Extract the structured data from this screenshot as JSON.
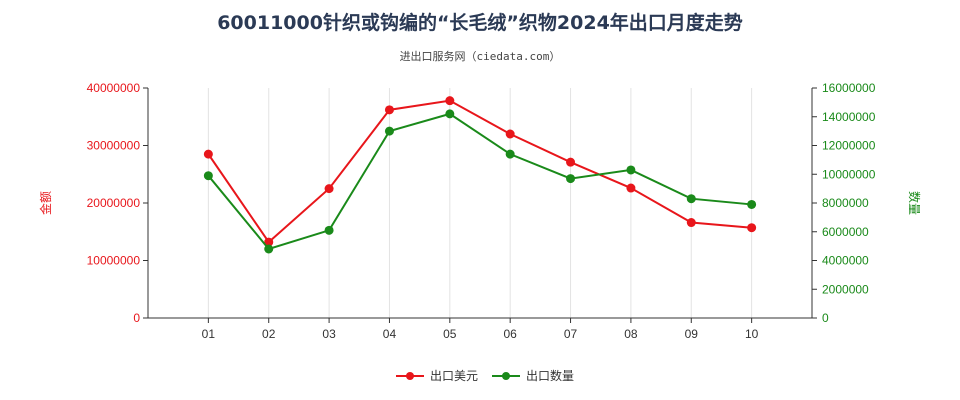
{
  "title": "60011000针织或钩编的“长毛绒”织物2024年出口月度走势",
  "subtitle": "进出口服务网（ciedata.com）",
  "colors": {
    "amount": "#e8161b",
    "quantity": "#1a8a1a",
    "grid": "#e3e3e3",
    "axis": "#333333"
  },
  "chart_data": {
    "type": "line",
    "title": "60011000针织或钩编的“长毛绒”织物2024年出口月度走势",
    "categories": [
      "01",
      "02",
      "03",
      "04",
      "05",
      "06",
      "07",
      "08",
      "09",
      "10"
    ],
    "xlabel": "",
    "ylabel_left": "金额",
    "ylabel_right": "数量",
    "ylim_left": [
      0,
      40000000
    ],
    "ylim_right": [
      0,
      16000000
    ],
    "yticks_left": [
      "0",
      "10000000",
      "20000000",
      "30000000",
      "40000000"
    ],
    "yticks_right": [
      "0",
      "2000000",
      "4000000",
      "6000000",
      "8000000",
      "10000000",
      "12000000",
      "14000000",
      "16000000"
    ],
    "grid": "vertical",
    "legend_position": "bottom-center",
    "series": [
      {
        "name": "出口美元",
        "axis": "left",
        "values": [
          28500000,
          13200000,
          22500000,
          36200000,
          37800000,
          32000000,
          27100000,
          22600000,
          16600000,
          15700000
        ]
      },
      {
        "name": "出口数量",
        "axis": "right",
        "values": [
          9900000,
          4800000,
          6100000,
          13000000,
          14200000,
          11400000,
          9700000,
          10300000,
          8300000,
          7900000
        ]
      }
    ]
  }
}
